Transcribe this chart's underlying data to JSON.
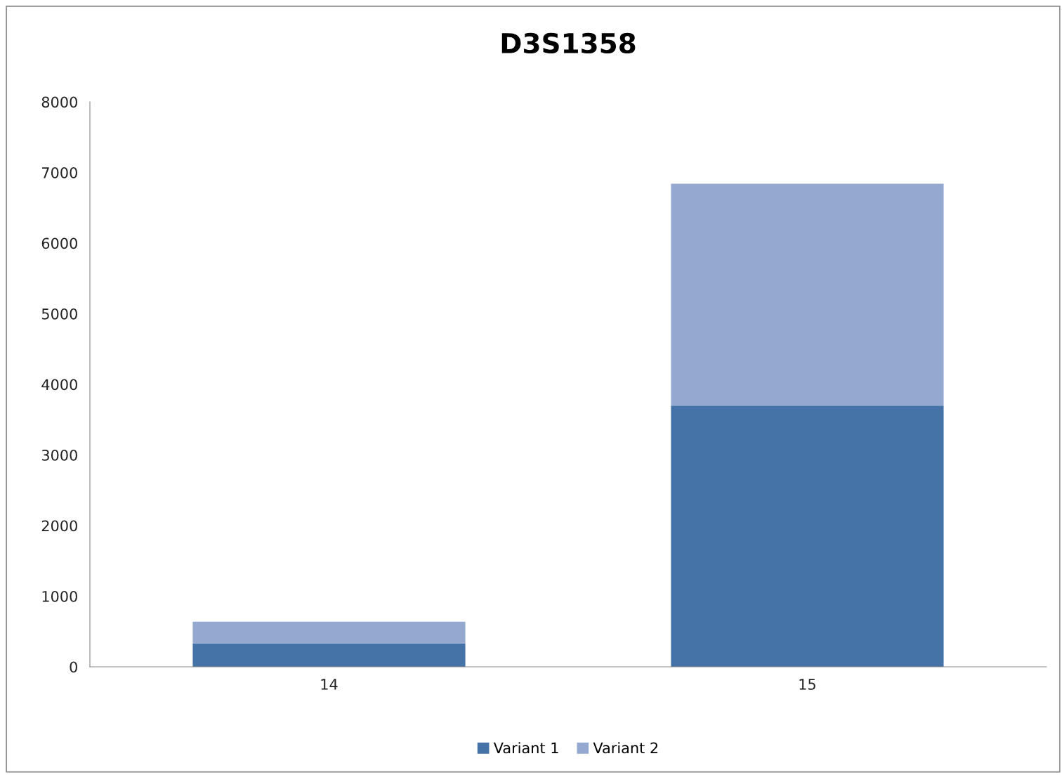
{
  "chart_data": {
    "type": "bar",
    "title": "D3S1358",
    "categories": [
      "14",
      "15"
    ],
    "stacked": true,
    "series": [
      {
        "name": "Variant 1",
        "color": "#4573a7",
        "values": [
          330,
          3700
        ]
      },
      {
        "name": "Variant 2",
        "color": "#95a9d0",
        "values": [
          310,
          3140
        ]
      }
    ],
    "ylim": [
      0,
      8000
    ],
    "yticks": [
      0,
      1000,
      2000,
      3000,
      4000,
      5000,
      6000,
      7000,
      8000
    ],
    "grid": false,
    "legend": "bottom"
  }
}
